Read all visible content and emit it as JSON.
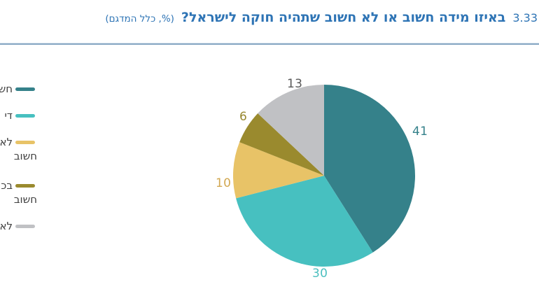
{
  "header": {
    "section_number": "3.33",
    "title": "באיזו מידה חשוב או לא חשוב שתהיה חוקה לישראל?",
    "subtitle": "(%, כלל המדגם)"
  },
  "chart_data": {
    "type": "pie",
    "title": "באיזו מידה חשוב או לא חשוב שתהיה חוקה לישראל?",
    "subtitle": "(%, כלל המדגם)",
    "units": "%",
    "values": [
      41,
      30,
      10,
      6,
      13
    ],
    "slice_colors": [
      "#35818a",
      "#47c0c0",
      "#e8c367",
      "#9a8a2e",
      "#c0c1c4"
    ],
    "value_label_colors": [
      "#35818a",
      "#4bbfbf",
      "#d2a852",
      "#97872f",
      "#595959"
    ],
    "start_angle_deg": 0,
    "direction": "clockwise",
    "legend_position": "left",
    "legend_items": [
      {
        "lines": [
          "חש"
        ]
      },
      {
        "lines": [
          "די"
        ]
      },
      {
        "lines": [
          "לא",
          "חשוב"
        ]
      },
      {
        "lines": [
          "בכ",
          "חשוב"
        ]
      },
      {
        "lines": [
          "לא"
        ]
      }
    ]
  }
}
